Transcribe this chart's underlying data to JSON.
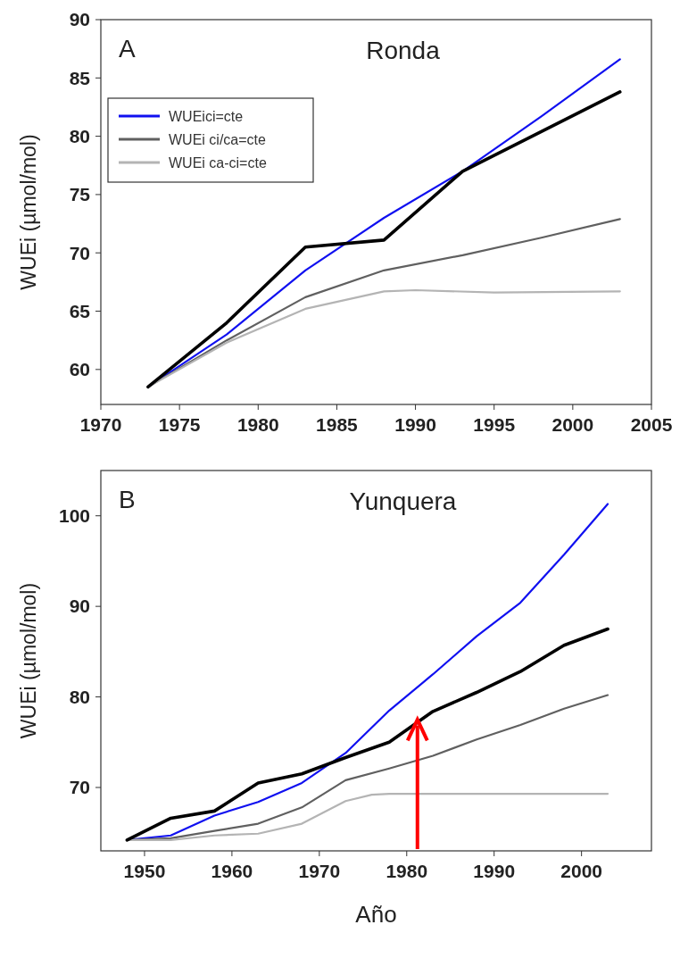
{
  "chart_data": [
    {
      "type": "line",
      "title": "Ronda",
      "ylabel": "WUEi (µmol/mol)",
      "annotations": [
        "A"
      ],
      "xlim": [
        1970,
        2005
      ],
      "xticks": [
        1970,
        1975,
        1980,
        1985,
        1990,
        1995,
        2000,
        2005
      ],
      "ylim": [
        57,
        90
      ],
      "yticks": [
        60,
        65,
        70,
        75,
        80,
        85,
        90
      ],
      "legend": "top left",
      "grid": false,
      "series": [
        {
          "name": "WUEici=cte",
          "color": "#1010f0",
          "x": [
            1973,
            1978,
            1983,
            1988,
            1993,
            1998,
            2003
          ],
          "values": [
            58.5,
            63,
            68.5,
            73,
            77,
            81.7,
            86.6
          ]
        },
        {
          "name": "WUEi ci/ca=cte",
          "color": "#606060",
          "x": [
            1973,
            1978,
            1983,
            1988,
            1993,
            1998,
            2003
          ],
          "values": [
            58.5,
            62.5,
            66.2,
            68.5,
            69.8,
            71.3,
            72.9
          ]
        },
        {
          "name": "WUEi ca-ci=cte",
          "color": "#b4b4b4",
          "x": [
            1973,
            1978,
            1983,
            1988,
            1990,
            1995,
            2003
          ],
          "values": [
            58.5,
            62.3,
            65.2,
            66.7,
            66.8,
            66.6,
            66.7
          ]
        },
        {
          "color": "#000000",
          "x": [
            1973,
            1978,
            1983,
            1988,
            1993,
            2003
          ],
          "values": [
            58.5,
            64,
            70.5,
            71.1,
            77,
            83.8
          ]
        }
      ]
    },
    {
      "type": "line",
      "title": "Yunquera",
      "xlabel": "Año",
      "ylabel": "WUEi (µmol/mol)",
      "annotations": [
        "B"
      ],
      "xlim": [
        1945,
        2008
      ],
      "xticks": [
        1950,
        1960,
        1970,
        1980,
        1990,
        2000
      ],
      "ylim": [
        63,
        105
      ],
      "yticks": [
        70,
        80,
        90,
        100
      ],
      "legend": false,
      "grid": false,
      "series": [
        {
          "color": "#1010f0",
          "x": [
            1948,
            1953,
            1958,
            1963,
            1968,
            1973,
            1978,
            1983,
            1988,
            1993,
            1998,
            2003
          ],
          "values": [
            64.2,
            64.7,
            66.9,
            68.4,
            70.5,
            73.8,
            78.5,
            82.5,
            86.7,
            90.4,
            95.7,
            101.3
          ]
        },
        {
          "color": "#606060",
          "x": [
            1948,
            1953,
            1958,
            1963,
            1968,
            1973,
            1978,
            1983,
            1988,
            1993,
            1998,
            2003
          ],
          "values": [
            64.2,
            64.4,
            65.2,
            66.0,
            67.8,
            70.8,
            72.1,
            73.5,
            75.3,
            76.9,
            78.7,
            80.2
          ]
        },
        {
          "color": "#b4b4b4",
          "x": [
            1948,
            1953,
            1958,
            1963,
            1968,
            1973,
            1976,
            1978,
            2003
          ],
          "values": [
            64.2,
            64.2,
            64.7,
            64.9,
            66.0,
            68.5,
            69.2,
            69.3,
            69.3
          ]
        },
        {
          "color": "#000000",
          "x": [
            1948,
            1953,
            1958,
            1963,
            1968,
            1973,
            1978,
            1983,
            1988,
            1993,
            1998,
            2003
          ],
          "values": [
            64.2,
            66.6,
            67.4,
            70.5,
            71.5,
            73.3,
            75.0,
            78.4,
            80.5,
            82.8,
            85.7,
            87.5
          ]
        }
      ]
    }
  ]
}
